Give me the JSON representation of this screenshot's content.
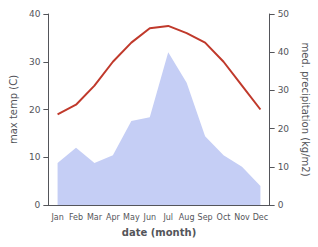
{
  "chart_data": {
    "type": "line",
    "xlabel": "date (month)",
    "ylabel": "max temp (C)",
    "y2label": "med. precipitation (kg/m2)",
    "categories": [
      "Jan",
      "Feb",
      "Mar",
      "Apr",
      "May",
      "Jun",
      "Jul",
      "Aug",
      "Sep",
      "Oct",
      "Nov",
      "Dec"
    ],
    "series": [
      {
        "type": "area",
        "color": "#c5cef5",
        "axis": "y2",
        "values": [
          11,
          15,
          11,
          13,
          22,
          23,
          40,
          32,
          18,
          13,
          10,
          5
        ]
      },
      {
        "type": "line",
        "color": "#c0392b",
        "values": [
          19,
          21,
          25,
          30,
          34,
          37,
          37.5,
          36,
          34,
          30,
          25,
          20
        ]
      }
    ],
    "ylim": [
      0,
      40
    ],
    "yticks": [
      0,
      10,
      20,
      30,
      40
    ],
    "y2lim": [
      0,
      50
    ],
    "y2ticks": [
      0,
      10,
      20,
      30,
      40,
      50
    ],
    "grid": false
  }
}
